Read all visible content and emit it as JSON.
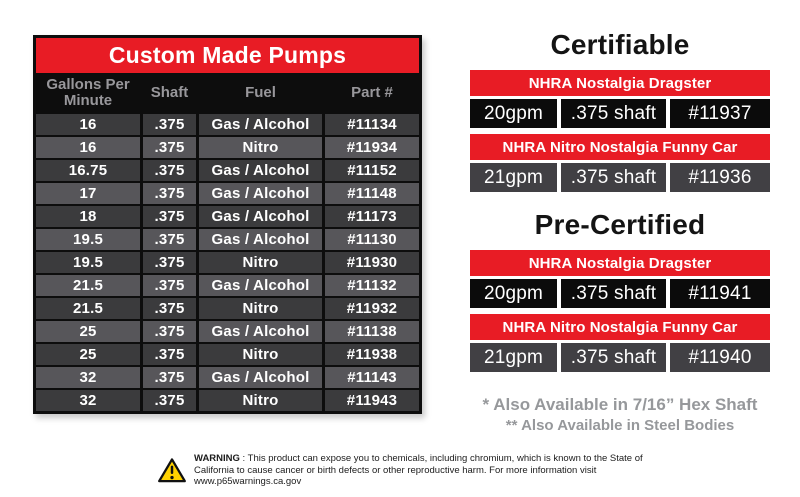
{
  "pump_table": {
    "title": "Custom Made Pumps",
    "columns": [
      "Gallons Per Minute",
      "Shaft",
      "Fuel",
      "Part #"
    ],
    "rows": [
      [
        "16",
        ".375",
        "Gas / Alcohol",
        "#11134"
      ],
      [
        "16",
        ".375",
        "Nitro",
        "#11934"
      ],
      [
        "16.75",
        ".375",
        "Gas / Alcohol",
        "#11152"
      ],
      [
        "17",
        ".375",
        "Gas / Alcohol",
        "#11148"
      ],
      [
        "18",
        ".375",
        "Gas / Alcohol",
        "#11173"
      ],
      [
        "19.5",
        ".375",
        "Gas / Alcohol",
        "#11130"
      ],
      [
        "19.5",
        ".375",
        "Nitro",
        "#11930"
      ],
      [
        "21.5",
        ".375",
        "Gas / Alcohol",
        "#11132"
      ],
      [
        "21.5",
        ".375",
        "Nitro",
        "#11932"
      ],
      [
        "25",
        ".375",
        "Gas / Alcohol",
        "#11138"
      ],
      [
        "25",
        ".375",
        "Nitro",
        "#11938"
      ],
      [
        "32",
        ".375",
        "Gas / Alcohol",
        "#11143"
      ],
      [
        "32",
        ".375",
        "Nitro",
        "#11943"
      ]
    ]
  },
  "certifications": [
    {
      "title": "Certifiable",
      "entries": [
        {
          "class_name": "NHRA Nostalgia Dragster",
          "gpm": "20gpm",
          "shaft": ".375 shaft",
          "part": "#11937"
        },
        {
          "class_name": "NHRA Nitro Nostalgia Funny Car",
          "gpm": "21gpm",
          "shaft": ".375 shaft",
          "part": "#11936"
        }
      ]
    },
    {
      "title": "Pre-Certified",
      "entries": [
        {
          "class_name": "NHRA Nostalgia Dragster",
          "gpm": "20gpm",
          "shaft": ".375 shaft",
          "part": "#11941"
        },
        {
          "class_name": "NHRA Nitro Nostalgia Funny Car",
          "gpm": "21gpm",
          "shaft": ".375 shaft",
          "part": "#11940"
        }
      ]
    }
  ],
  "footnotes": {
    "line1": "* Also Available in 7/16” Hex Shaft",
    "line2": "** Also Available in Steel Bodies"
  },
  "warning": {
    "label": "WARNING",
    "text": " : This product can expose you to chemicals, including chromium, which is known to the State of California to cause cancer or birth defects or other reproductive harm. For more information visit www.p65warnings.ca.gov"
  },
  "colors": {
    "accent_red": "#e81c25",
    "table_black": "#0d0d0d",
    "row_dark": "#3b3b3d",
    "row_light": "#57565a",
    "header_text_gray": "#98979b",
    "footnote_gray": "#96989b",
    "warning_yellow": "#ffd200"
  }
}
